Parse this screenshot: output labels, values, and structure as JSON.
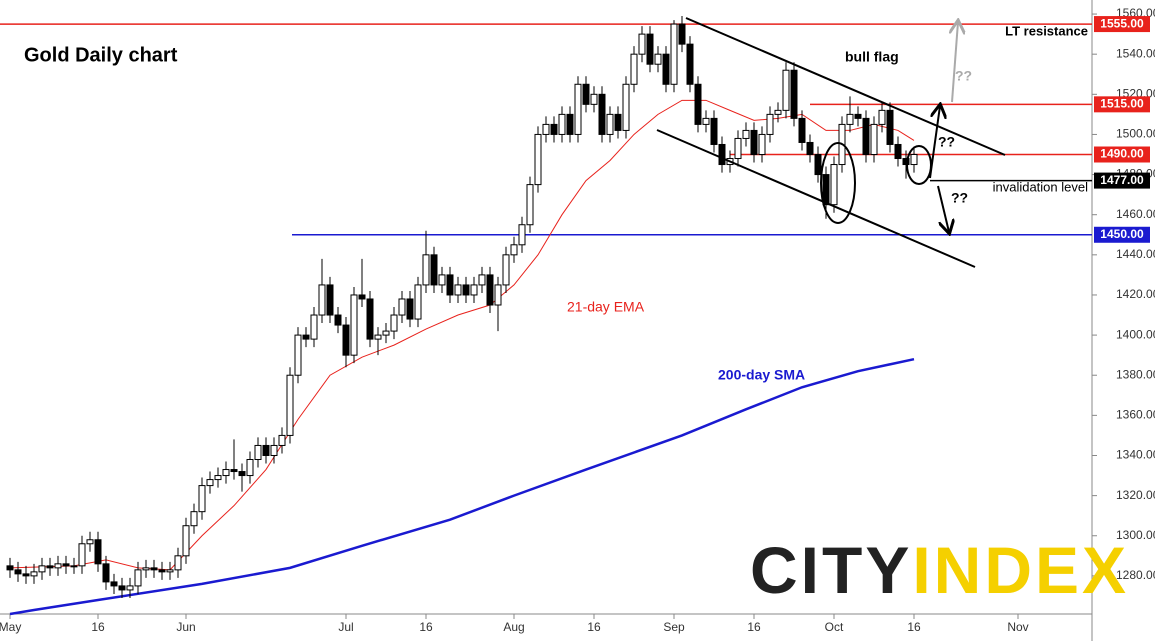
{
  "chart_data": {
    "type": "candlestick",
    "title": "Gold Daily chart",
    "xlim": [
      -1.25,
      135.25
    ],
    "xticks": [
      {
        "value": 0,
        "label": "May"
      },
      {
        "value": 11,
        "label": "16"
      },
      {
        "value": 22,
        "label": "Jun"
      },
      {
        "value": 42,
        "label": "Jul"
      },
      {
        "value": 52,
        "label": "16"
      },
      {
        "value": 63,
        "label": "Aug"
      },
      {
        "value": 73,
        "label": "16"
      },
      {
        "value": 83,
        "label": "Sep"
      },
      {
        "value": 93,
        "label": "16"
      },
      {
        "value": 103,
        "label": "Oct"
      },
      {
        "value": 113,
        "label": "16"
      },
      {
        "value": 126,
        "label": "Nov"
      }
    ],
    "ylim": [
      1262,
      1567
    ],
    "yticks": [
      {
        "value": 1280,
        "label": "1280.00"
      },
      {
        "value": 1300,
        "label": "1300.00"
      },
      {
        "value": 1320,
        "label": "1320.00"
      },
      {
        "value": 1340,
        "label": "1340.00"
      },
      {
        "value": 1360,
        "label": "1360.00"
      },
      {
        "value": 1380,
        "label": "1380.00"
      },
      {
        "value": 1400,
        "label": "1400.00"
      },
      {
        "value": 1420,
        "label": "1420.00"
      },
      {
        "value": 1440,
        "label": "1440.00"
      },
      {
        "value": 1460,
        "label": "1460.00"
      },
      {
        "value": 1480,
        "label": "1480.00"
      },
      {
        "value": 1500,
        "label": "1500.00"
      },
      {
        "value": 1520,
        "label": "1520.00"
      },
      {
        "value": 1540,
        "label": "1540.00"
      },
      {
        "value": 1560,
        "label": "1560.00"
      }
    ],
    "up_color": "#ffffff",
    "down_color": "#000000",
    "open": [
      1285,
      1283,
      1281,
      1280,
      1282,
      1285,
      1284,
      1286,
      1285,
      1285,
      1296,
      1298,
      1286,
      1277,
      1275,
      1273,
      1275,
      1283,
      1284,
      1283,
      1282,
      1283,
      1290,
      1305,
      1312,
      1325,
      1328,
      1330,
      1333,
      1332,
      1330,
      1338,
      1345,
      1340,
      1345,
      1350,
      1380,
      1400,
      1398,
      1410,
      1425,
      1410,
      1405,
      1390,
      1420,
      1418,
      1398,
      1400,
      1402,
      1410,
      1418,
      1408,
      1425,
      1440,
      1425,
      1430,
      1420,
      1425,
      1420,
      1425,
      1430,
      1415,
      1425,
      1440,
      1445,
      1455,
      1475,
      1500,
      1505,
      1500,
      1510,
      1500,
      1525,
      1515,
      1520,
      1500,
      1510,
      1502,
      1525,
      1540,
      1550,
      1535,
      1540,
      1525,
      1555,
      1545,
      1525,
      1505,
      1508,
      1495,
      1485,
      1488,
      1498,
      1502,
      1490,
      1500,
      1510,
      1512,
      1532,
      1508,
      1496,
      1490,
      1480,
      1465,
      1485,
      1505,
      1510,
      1508,
      1490,
      1505,
      1512,
      1495,
      1488,
      1485
    ],
    "high": [
      1289,
      1287,
      1285,
      1286,
      1289,
      1289,
      1290,
      1290,
      1289,
      1300,
      1302,
      1302,
      1290,
      1281,
      1279,
      1279,
      1287,
      1288,
      1288,
      1287,
      1287,
      1294,
      1309,
      1316,
      1329,
      1332,
      1334,
      1337,
      1348,
      1336,
      1342,
      1349,
      1349,
      1349,
      1354,
      1384,
      1404,
      1404,
      1414,
      1438,
      1429,
      1414,
      1409,
      1424,
      1438,
      1422,
      1404,
      1406,
      1414,
      1422,
      1422,
      1429,
      1452,
      1444,
      1434,
      1434,
      1429,
      1429,
      1429,
      1434,
      1434,
      1429,
      1444,
      1449,
      1459,
      1479,
      1504,
      1509,
      1509,
      1514,
      1514,
      1529,
      1529,
      1524,
      1524,
      1514,
      1514,
      1529,
      1544,
      1554,
      1554,
      1544,
      1544,
      1557,
      1559,
      1549,
      1529,
      1512,
      1512,
      1499,
      1492,
      1502,
      1506,
      1506,
      1504,
      1514,
      1516,
      1536,
      1536,
      1512,
      1500,
      1494,
      1484,
      1489,
      1509,
      1519,
      1514,
      1512,
      1509,
      1516,
      1516,
      1499,
      1492,
      1494
    ],
    "low": [
      1279,
      1277,
      1276,
      1276,
      1278,
      1280,
      1280,
      1281,
      1281,
      1281,
      1292,
      1282,
      1273,
      1271,
      1269,
      1269,
      1271,
      1279,
      1279,
      1278,
      1278,
      1279,
      1286,
      1301,
      1308,
      1321,
      1324,
      1326,
      1328,
      1322,
      1326,
      1334,
      1336,
      1336,
      1341,
      1346,
      1376,
      1394,
      1394,
      1406,
      1406,
      1401,
      1384,
      1386,
      1414,
      1394,
      1390,
      1396,
      1398,
      1406,
      1404,
      1404,
      1421,
      1421,
      1421,
      1416,
      1416,
      1416,
      1416,
      1421,
      1411,
      1402,
      1421,
      1436,
      1441,
      1451,
      1471,
      1496,
      1496,
      1496,
      1496,
      1496,
      1511,
      1511,
      1496,
      1496,
      1498,
      1498,
      1521,
      1536,
      1531,
      1531,
      1521,
      1521,
      1541,
      1521,
      1501,
      1501,
      1491,
      1481,
      1481,
      1484,
      1494,
      1486,
      1486,
      1496,
      1506,
      1508,
      1504,
      1492,
      1486,
      1476,
      1458,
      1461,
      1481,
      1501,
      1504,
      1486,
      1486,
      1501,
      1491,
      1484,
      1478,
      1481
    ],
    "close": [
      1283,
      1281,
      1280,
      1282,
      1285,
      1284,
      1286,
      1285,
      1285,
      1296,
      1298,
      1286,
      1277,
      1275,
      1273,
      1275,
      1283,
      1284,
      1283,
      1282,
      1283,
      1290,
      1305,
      1312,
      1325,
      1328,
      1330,
      1333,
      1332,
      1330,
      1338,
      1345,
      1340,
      1345,
      1350,
      1380,
      1400,
      1398,
      1410,
      1425,
      1410,
      1405,
      1390,
      1420,
      1418,
      1398,
      1400,
      1402,
      1410,
      1418,
      1408,
      1425,
      1440,
      1425,
      1430,
      1420,
      1425,
      1420,
      1425,
      1430,
      1415,
      1425,
      1440,
      1445,
      1455,
      1475,
      1500,
      1505,
      1500,
      1510,
      1500,
      1525,
      1515,
      1520,
      1500,
      1510,
      1502,
      1525,
      1540,
      1550,
      1535,
      1540,
      1525,
      1555,
      1545,
      1525,
      1505,
      1508,
      1495,
      1485,
      1488,
      1498,
      1502,
      1490,
      1500,
      1510,
      1512,
      1532,
      1508,
      1496,
      1490,
      1480,
      1465,
      1485,
      1505,
      1510,
      1508,
      1490,
      1505,
      1512,
      1495,
      1488,
      1485,
      1490
    ],
    "series": [
      {
        "name": "21-day EMA",
        "color": "#e8221c",
        "width": 1,
        "x": [
          0,
          8,
          12,
          16,
          20,
          24,
          28,
          32,
          36,
          40,
          44,
          48,
          52,
          56,
          60,
          63,
          66,
          69,
          72,
          75,
          78,
          81,
          84,
          87,
          90,
          93,
          96,
          99,
          102,
          105,
          108,
          111,
          113
        ],
        "values": [
          1284,
          1285,
          1288,
          1284,
          1283,
          1300,
          1315,
          1333,
          1358,
          1380,
          1389,
          1395,
          1403,
          1410,
          1415,
          1425,
          1440,
          1460,
          1477,
          1487,
          1500,
          1510,
          1517,
          1517,
          1512,
          1507,
          1508,
          1510,
          1502,
          1502,
          1505,
          1502,
          1497
        ]
      },
      {
        "name": "200-day SMA",
        "color": "#1a1ad0",
        "width": 2.5,
        "x": [
          0,
          3,
          11,
          24,
          35,
          44,
          55,
          63,
          72,
          84,
          92,
          99,
          106,
          113
        ],
        "values": [
          1261,
          1263,
          1268,
          1276,
          1284,
          1295,
          1308,
          1320,
          1333,
          1350,
          1363,
          1374,
          1382,
          1388
        ]
      }
    ],
    "levels": [
      {
        "value": 1555,
        "label": "1555.00",
        "color": "#e8221c"
      },
      {
        "value": 1515,
        "label": "1515.00",
        "color": "#e8221c"
      },
      {
        "value": 1490,
        "label": "1490.00",
        "color": "#e8221c"
      },
      {
        "value": 1477,
        "label": "1477.00",
        "color": "#000000"
      },
      {
        "value": 1450,
        "label": "1450.00",
        "color": "#1a1ad0"
      }
    ],
    "annotations": {
      "bull_flag": "bull flag",
      "lt_resistance": "LT resistance",
      "invalidation": "invalidation level",
      "q_gray": "??",
      "q_up": "??",
      "q_down": "??"
    },
    "logo": [
      "CITY",
      "INDEX"
    ]
  }
}
